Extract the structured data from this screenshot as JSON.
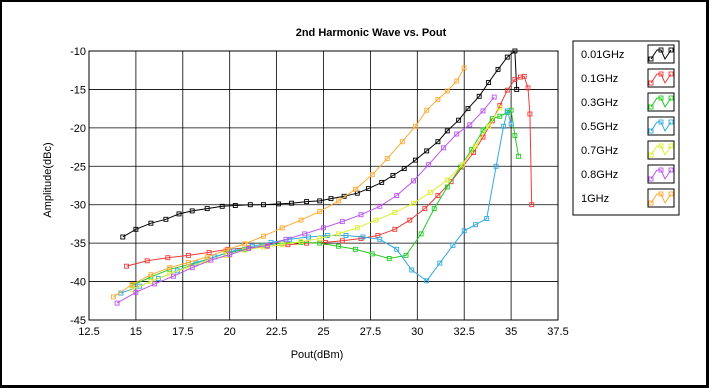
{
  "chart_data": {
    "type": "line",
    "title": "2nd Harmonic Wave vs. Pout",
    "xlabel": "Pout(dBm)",
    "ylabel": "Amplitude(dBc)",
    "xlim": [
      12.5,
      37.5
    ],
    "ylim": [
      -45,
      -10
    ],
    "xticks": [
      "12.5",
      "15",
      "17.5",
      "20",
      "22.5",
      "25",
      "27.5",
      "30",
      "32.5",
      "35",
      "37.5"
    ],
    "yticks": [
      "-10",
      "-15",
      "-20",
      "-25",
      "-30",
      "-35",
      "-40",
      "-45"
    ],
    "grid": true,
    "legend_position": "right",
    "series": [
      {
        "name": "0.01GHz",
        "color": "#000000",
        "x": [
          14.3,
          15.0,
          15.8,
          16.6,
          17.3,
          18.0,
          18.8,
          19.6,
          20.3,
          21.1,
          21.8,
          22.6,
          23.3,
          24.1,
          24.8,
          25.4,
          26.1,
          26.8,
          27.4,
          28.1,
          28.7,
          29.3,
          29.9,
          30.5,
          31.1,
          31.6,
          32.2,
          32.7,
          33.3,
          33.8,
          34.3,
          34.8,
          35.2,
          35.3
        ],
        "y": [
          -34.2,
          -33.2,
          -32.4,
          -31.9,
          -31.2,
          -30.8,
          -30.5,
          -30.2,
          -30.1,
          -30.0,
          -30.0,
          -29.9,
          -29.8,
          -29.6,
          -29.5,
          -29.2,
          -28.9,
          -28.5,
          -27.9,
          -27.1,
          -26.2,
          -25.3,
          -24.2,
          -23.0,
          -21.8,
          -20.4,
          -19.0,
          -17.5,
          -15.9,
          -14.1,
          -12.4,
          -10.8,
          -10.0,
          -15.0
        ],
        "markers": "square"
      },
      {
        "name": "0.1GHz",
        "color": "#ee3b3b",
        "x": [
          14.5,
          15.6,
          16.7,
          17.8,
          18.9,
          19.9,
          21.0,
          22.0,
          23.1,
          24.1,
          25.1,
          26.0,
          27.0,
          27.9,
          28.8,
          29.6,
          30.4,
          31.1,
          31.8,
          32.4,
          33.0,
          33.5,
          34.0,
          34.4,
          34.8,
          35.2,
          35.5,
          35.7,
          35.9,
          36.0,
          36.1
        ],
        "y": [
          -38.0,
          -37.3,
          -36.9,
          -36.6,
          -36.2,
          -35.8,
          -35.6,
          -35.4,
          -35.2,
          -35.0,
          -34.9,
          -34.7,
          -34.4,
          -34.0,
          -33.2,
          -32.0,
          -30.5,
          -28.8,
          -27.0,
          -25.1,
          -23.2,
          -21.2,
          -19.1,
          -17.1,
          -15.1,
          -13.7,
          -13.4,
          -13.3,
          -14.8,
          -18.2,
          -30.0
        ]
      },
      {
        "name": "0.3GHz",
        "color": "#22cc22",
        "x": [
          14.8,
          15.8,
          16.8,
          17.8,
          18.8,
          19.8,
          20.8,
          21.8,
          22.8,
          23.8,
          24.8,
          25.8,
          26.7,
          27.6,
          28.5,
          29.4,
          30.2,
          30.9,
          31.6,
          32.3,
          32.9,
          33.5,
          34.0,
          34.4,
          34.8,
          35.0,
          35.2,
          35.4
        ],
        "y": [
          -40.5,
          -39.4,
          -38.4,
          -37.8,
          -37.1,
          -36.3,
          -35.8,
          -35.3,
          -35.0,
          -34.9,
          -35.0,
          -35.4,
          -35.8,
          -36.4,
          -37.0,
          -36.6,
          -33.8,
          -30.5,
          -27.7,
          -25.1,
          -22.8,
          -20.3,
          -18.8,
          -18.5,
          -18.0,
          -17.7,
          -21.0,
          -23.7
        ]
      },
      {
        "name": "0.5GHz",
        "color": "#33aadd",
        "x": [
          14.2,
          15.2,
          16.2,
          17.2,
          18.2,
          19.2,
          20.2,
          21.2,
          22.2,
          23.2,
          24.2,
          25.2,
          26.2,
          27.1,
          28.0,
          28.9,
          29.7,
          30.5,
          31.2,
          31.9,
          32.5,
          33.1,
          33.7,
          34.2,
          34.6,
          34.8,
          35.0
        ],
        "y": [
          -41.5,
          -40.6,
          -39.6,
          -38.6,
          -37.6,
          -36.8,
          -36.0,
          -35.4,
          -34.9,
          -34.5,
          -34.2,
          -34.0,
          -34.0,
          -34.2,
          -34.5,
          -35.8,
          -38.5,
          -39.9,
          -37.6,
          -35.3,
          -33.4,
          -32.6,
          -31.8,
          -25.0,
          -19.8,
          -17.8,
          -19.5
        ]
      },
      {
        "name": "0.7GHz",
        "color": "#ddee33",
        "x": [
          14.8,
          15.8,
          16.8,
          17.8,
          18.8,
          19.8,
          20.8,
          21.8,
          22.8,
          23.8,
          24.8,
          25.8,
          26.8,
          27.8,
          28.8,
          29.8,
          30.7,
          31.6,
          32.4,
          33.1,
          33.8,
          34.4
        ],
        "y": [
          -41.0,
          -40.0,
          -39.0,
          -38.1,
          -37.3,
          -36.6,
          -35.9,
          -35.5,
          -35.2,
          -34.8,
          -34.4,
          -33.8,
          -33.0,
          -32.0,
          -31.0,
          -29.8,
          -28.4,
          -26.8,
          -24.8,
          -22.4,
          -19.8,
          -17.4
        ]
      },
      {
        "name": "0.8GHz",
        "color": "#bb55ee",
        "x": [
          14.0,
          15.0,
          16.0,
          17.0,
          18.0,
          19.0,
          20.0,
          21.0,
          22.0,
          23.0,
          24.0,
          25.0,
          26.0,
          27.0,
          28.0,
          28.9,
          29.8,
          30.6,
          31.4,
          32.1,
          32.8,
          33.5,
          34.1
        ],
        "y": [
          -42.8,
          -41.4,
          -40.3,
          -39.3,
          -38.2,
          -37.2,
          -36.5,
          -35.7,
          -35.3,
          -34.5,
          -33.8,
          -33.0,
          -32.2,
          -31.3,
          -30.2,
          -28.8,
          -26.9,
          -24.8,
          -22.6,
          -20.8,
          -19.6,
          -17.8,
          -16.0
        ]
      },
      {
        "name": "1GHz",
        "color": "#ffaa33",
        "x": [
          13.8,
          14.8,
          15.8,
          16.8,
          17.8,
          18.8,
          19.8,
          20.8,
          21.8,
          22.8,
          23.8,
          24.8,
          25.8,
          26.7,
          27.6,
          28.4,
          29.2,
          29.9,
          30.5,
          31.1,
          31.6,
          32.1,
          32.5
        ],
        "y": [
          -42.0,
          -40.4,
          -39.1,
          -38.2,
          -37.5,
          -36.8,
          -35.9,
          -35.1,
          -34.1,
          -33.0,
          -32.0,
          -30.9,
          -29.5,
          -28.0,
          -26.1,
          -24.0,
          -21.8,
          -19.8,
          -17.7,
          -16.3,
          -15.2,
          -13.9,
          -12.2
        ]
      }
    ]
  }
}
